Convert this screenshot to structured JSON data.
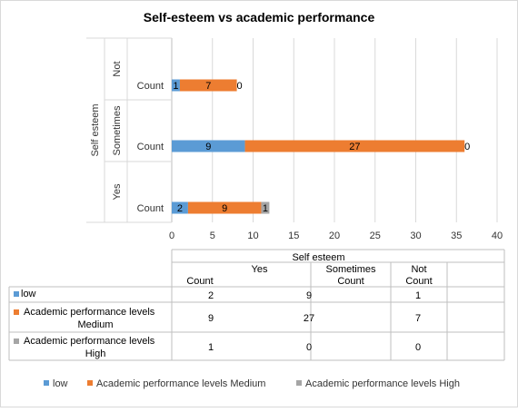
{
  "chart_data": {
    "type": "bar",
    "stacked": true,
    "orientation": "horizontal",
    "title": "Self-esteem vs academic performance",
    "group_axis_label": "Self esteem",
    "groups": [
      "Not",
      "Sometimes",
      "Yes"
    ],
    "measure_label": "Count",
    "xlim": [
      0,
      40
    ],
    "x_ticks": [
      "0",
      "5",
      "10",
      "15",
      "20",
      "25",
      "30",
      "35",
      "40"
    ],
    "grid": true,
    "legend_position": "bottom",
    "series": [
      {
        "name": "low",
        "color": "#5b9bd5",
        "values": [
          1,
          9,
          2
        ],
        "labels": [
          "1",
          "9",
          "2"
        ]
      },
      {
        "name": "Academic performance levels Medium",
        "color": "#ed7d31",
        "values": [
          7,
          27,
          9
        ],
        "labels": [
          "7",
          "27",
          "9"
        ]
      },
      {
        "name": "Academic performance levels High",
        "color": "#a5a5a5",
        "values": [
          0,
          0,
          1
        ],
        "labels": [
          "0",
          "0",
          "1"
        ]
      }
    ],
    "table": {
      "header": "Self esteem",
      "columns": [
        "Yes",
        "Sometimes",
        "Not"
      ],
      "sub_header": "Count",
      "rows": [
        {
          "series_name": "low",
          "line1": "low",
          "line2": "",
          "values": [
            "2",
            "9",
            "1"
          ]
        },
        {
          "series_name": "Academic performance levels Medium",
          "line1": "Academic performance levels",
          "line2": "Medium",
          "values": [
            "9",
            "27",
            "7"
          ]
        },
        {
          "series_name": "Academic performance levels High",
          "line1": "Academic performance levels",
          "line2": "High",
          "values": [
            "1",
            "0",
            "0"
          ]
        }
      ]
    }
  }
}
